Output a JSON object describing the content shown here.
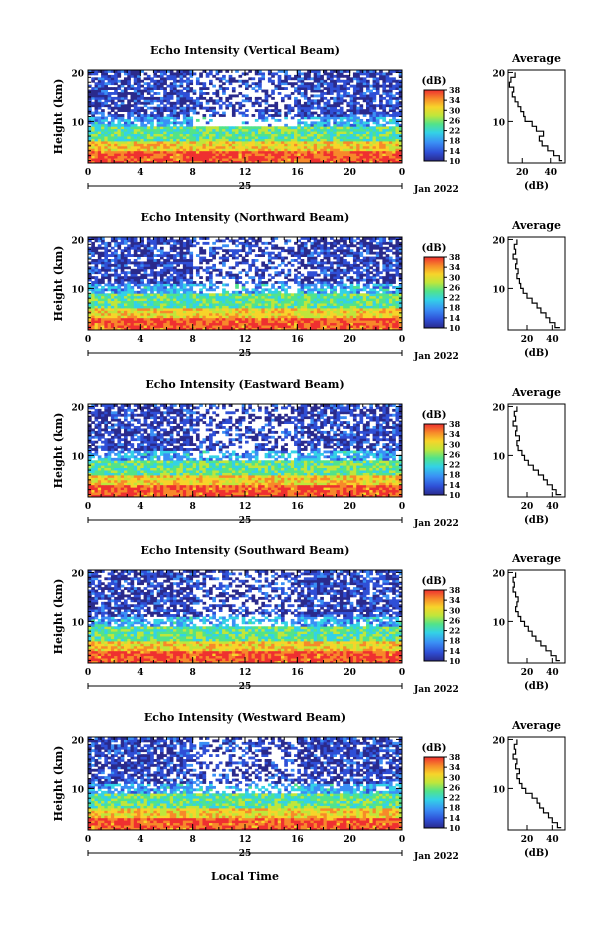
{
  "figure": {
    "xlabel": "Local Time",
    "date_label": "Jan 2022",
    "day_label": "25",
    "colorbar_label": "(dB)",
    "profile_title": "Average",
    "profile_xlabel": "(dB)",
    "ylabel": "Height (km)"
  },
  "chart_data": [
    {
      "type": "heatmap",
      "title": "Echo Intensity (Vertical Beam)",
      "xlabel": "Local Time",
      "ylabel": "Height (km)",
      "x_ticks": [
        "0",
        "4",
        "8",
        "12",
        "16",
        "20",
        "0"
      ],
      "y_ticks": [
        "10",
        "20"
      ],
      "xlim": [
        0,
        24
      ],
      "ylim": [
        1.5,
        20.5
      ],
      "color_scale": {
        "label": "(dB)",
        "range": [
          10,
          38
        ],
        "ticks": [
          "10",
          "14",
          "18",
          "22",
          "26",
          "30",
          "34",
          "38"
        ]
      },
      "average_profile": {
        "title": "Average",
        "xlabel": "(dB)",
        "x_ticks": [
          "20",
          "40"
        ],
        "xlim": [
          10,
          50
        ],
        "y_ticks": [
          "10",
          "20"
        ],
        "points": [
          [
            48,
            2
          ],
          [
            46,
            3
          ],
          [
            42,
            4
          ],
          [
            38,
            5
          ],
          [
            34,
            6
          ],
          [
            32,
            7
          ],
          [
            35,
            8
          ],
          [
            30,
            9
          ],
          [
            27,
            10
          ],
          [
            22,
            11
          ],
          [
            21,
            12
          ],
          [
            19,
            13
          ],
          [
            17,
            14
          ],
          [
            15,
            15
          ],
          [
            13,
            16
          ],
          [
            14,
            17
          ],
          [
            11,
            18
          ],
          [
            12,
            19
          ],
          [
            15,
            20
          ]
        ]
      }
    },
    {
      "type": "heatmap",
      "title": "Echo Intensity (Northward Beam)",
      "xlabel": "Local Time",
      "ylabel": "Height (km)",
      "x_ticks": [
        "0",
        "4",
        "8",
        "12",
        "16",
        "20",
        "0"
      ],
      "y_ticks": [
        "10",
        "20"
      ],
      "xlim": [
        0,
        24
      ],
      "ylim": [
        1.5,
        20.5
      ],
      "color_scale": {
        "label": "(dB)",
        "range": [
          10,
          38
        ],
        "ticks": [
          "10",
          "14",
          "18",
          "22",
          "26",
          "30",
          "34",
          "38"
        ]
      },
      "average_profile": {
        "title": "Average",
        "xlabel": "(dB)",
        "x_ticks": [
          "20",
          "40"
        ],
        "xlim": [
          5,
          50
        ],
        "y_ticks": [
          "10",
          "20"
        ],
        "points": [
          [
            46,
            2
          ],
          [
            42,
            3
          ],
          [
            38,
            4
          ],
          [
            35,
            5
          ],
          [
            31,
            6
          ],
          [
            28,
            7
          ],
          [
            24,
            8
          ],
          [
            20,
            9
          ],
          [
            17,
            10
          ],
          [
            15,
            11
          ],
          [
            14,
            12
          ],
          [
            12,
            13
          ],
          [
            13,
            14
          ],
          [
            11,
            15
          ],
          [
            12,
            16
          ],
          [
            9,
            17
          ],
          [
            11,
            18
          ],
          [
            10,
            19
          ],
          [
            12,
            20
          ]
        ]
      }
    },
    {
      "type": "heatmap",
      "title": "Echo Intensity (Eastward Beam)",
      "xlabel": "Local Time",
      "ylabel": "Height (km)",
      "x_ticks": [
        "0",
        "4",
        "8",
        "12",
        "16",
        "20",
        "0"
      ],
      "y_ticks": [
        "10",
        "20"
      ],
      "xlim": [
        0,
        24
      ],
      "ylim": [
        1.5,
        20.5
      ],
      "color_scale": {
        "label": "(dB)",
        "range": [
          10,
          38
        ],
        "ticks": [
          "10",
          "14",
          "18",
          "22",
          "26",
          "30",
          "34",
          "38"
        ]
      },
      "average_profile": {
        "title": "Average",
        "xlabel": "(dB)",
        "x_ticks": [
          "20",
          "40"
        ],
        "xlim": [
          5,
          50
        ],
        "y_ticks": [
          "10",
          "20"
        ],
        "points": [
          [
            47,
            2
          ],
          [
            43,
            3
          ],
          [
            40,
            4
          ],
          [
            36,
            5
          ],
          [
            33,
            6
          ],
          [
            29,
            7
          ],
          [
            25,
            8
          ],
          [
            21,
            9
          ],
          [
            18,
            10
          ],
          [
            16,
            11
          ],
          [
            13,
            12
          ],
          [
            12,
            13
          ],
          [
            14,
            14
          ],
          [
            11,
            15
          ],
          [
            12,
            16
          ],
          [
            9,
            17
          ],
          [
            11,
            18
          ],
          [
            10,
            19
          ],
          [
            12,
            20
          ]
        ]
      }
    },
    {
      "type": "heatmap",
      "title": "Echo Intensity (Southward Beam)",
      "xlabel": "Local Time",
      "ylabel": "Height (km)",
      "x_ticks": [
        "0",
        "4",
        "8",
        "12",
        "16",
        "20",
        "0"
      ],
      "y_ticks": [
        "10",
        "20"
      ],
      "xlim": [
        0,
        24
      ],
      "ylim": [
        1.5,
        20.5
      ],
      "color_scale": {
        "label": "(dB)",
        "range": [
          10,
          38
        ],
        "ticks": [
          "10",
          "14",
          "18",
          "22",
          "26",
          "30",
          "34",
          "38"
        ]
      },
      "average_profile": {
        "title": "Average",
        "xlabel": "(dB)",
        "x_ticks": [
          "20",
          "40"
        ],
        "xlim": [
          5,
          50
        ],
        "y_ticks": [
          "10",
          "20"
        ],
        "points": [
          [
            46,
            2
          ],
          [
            43,
            3
          ],
          [
            39,
            4
          ],
          [
            35,
            5
          ],
          [
            31,
            6
          ],
          [
            27,
            7
          ],
          [
            24,
            8
          ],
          [
            21,
            9
          ],
          [
            18,
            10
          ],
          [
            15,
            11
          ],
          [
            13,
            12
          ],
          [
            11,
            13
          ],
          [
            12,
            14
          ],
          [
            13,
            15
          ],
          [
            11,
            16
          ],
          [
            9,
            17
          ],
          [
            10,
            18
          ],
          [
            9,
            19
          ],
          [
            11,
            20
          ]
        ]
      }
    },
    {
      "type": "heatmap",
      "title": "Echo Intensity (Westward Beam)",
      "xlabel": "Local Time",
      "ylabel": "Height (km)",
      "x_ticks": [
        "0",
        "4",
        "8",
        "12",
        "16",
        "20",
        "0"
      ],
      "y_ticks": [
        "10",
        "20"
      ],
      "xlim": [
        0,
        24
      ],
      "ylim": [
        1.5,
        20.5
      ],
      "color_scale": {
        "label": "(dB)",
        "range": [
          10,
          38
        ],
        "ticks": [
          "10",
          "14",
          "18",
          "22",
          "26",
          "30",
          "34",
          "38"
        ]
      },
      "average_profile": {
        "title": "Average",
        "xlabel": "(dB)",
        "x_ticks": [
          "20",
          "40"
        ],
        "xlim": [
          5,
          50
        ],
        "y_ticks": [
          "10",
          "20"
        ],
        "points": [
          [
            47,
            2
          ],
          [
            44,
            3
          ],
          [
            40,
            4
          ],
          [
            37,
            5
          ],
          [
            33,
            6
          ],
          [
            30,
            7
          ],
          [
            28,
            8
          ],
          [
            24,
            9
          ],
          [
            19,
            10
          ],
          [
            16,
            11
          ],
          [
            14,
            12
          ],
          [
            12,
            13
          ],
          [
            14,
            14
          ],
          [
            11,
            15
          ],
          [
            12,
            16
          ],
          [
            9,
            17
          ],
          [
            11,
            18
          ],
          [
            10,
            19
          ],
          [
            12,
            20
          ]
        ]
      }
    }
  ]
}
